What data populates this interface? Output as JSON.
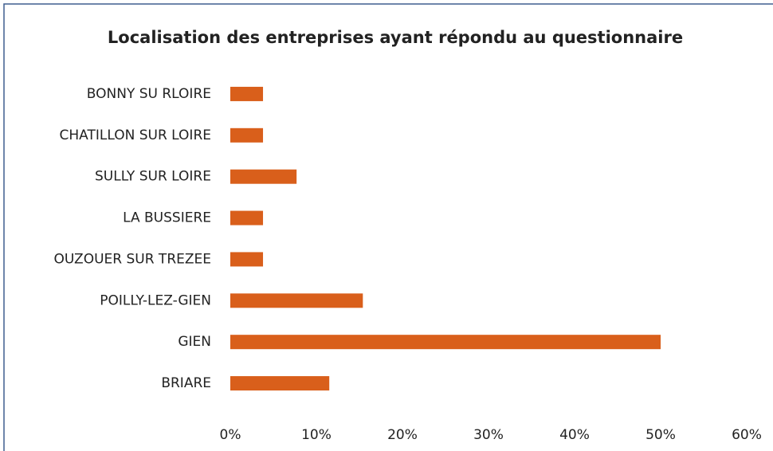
{
  "chart_data": {
    "type": "bar",
    "orientation": "horizontal",
    "title": "Localisation des entreprises ayant répondu au questionnaire",
    "categories": [
      "BONNY SU RLOIRE",
      "CHATILLON SUR LOIRE",
      "SULLY SUR LOIRE",
      "LA BUSSIERE",
      "OUZOUER SUR TREZEE",
      "POILLY-LEZ-GIEN",
      "GIEN",
      "BRIARE"
    ],
    "values": [
      3.8,
      3.8,
      7.7,
      3.8,
      3.8,
      15.4,
      50,
      11.5
    ],
    "color": "#d95f1b",
    "xlim": [
      0,
      60
    ],
    "xticks": [
      {
        "value": 0,
        "label": "0%"
      },
      {
        "value": 10,
        "label": "10%"
      },
      {
        "value": 20,
        "label": "20%"
      },
      {
        "value": 30,
        "label": "30%"
      },
      {
        "value": 40,
        "label": "40%"
      },
      {
        "value": 50,
        "label": "50%"
      },
      {
        "value": 60,
        "label": "60%"
      }
    ],
    "grid": false
  }
}
